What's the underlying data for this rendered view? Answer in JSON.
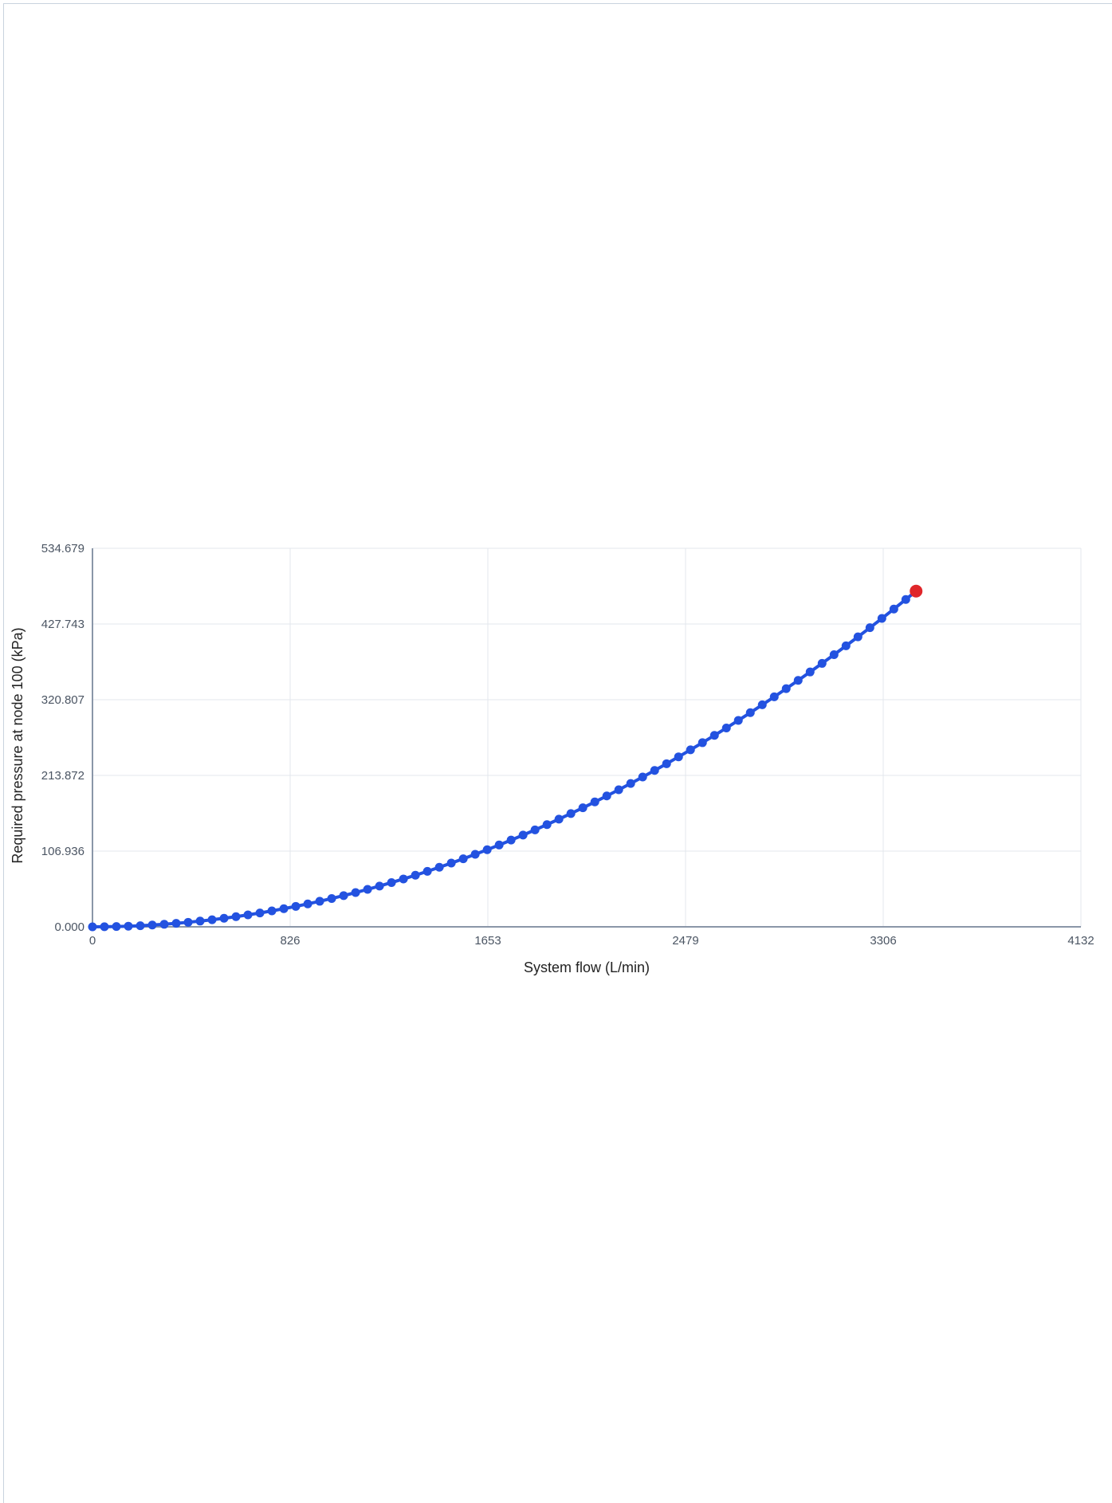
{
  "chart_data": {
    "type": "line",
    "title": "",
    "xlabel": "System flow (L/min)",
    "ylabel": "Required pressure at node 100 (kPa)",
    "xlim": [
      0,
      4132
    ],
    "ylim": [
      0,
      534.679
    ],
    "x_ticks": [
      "0",
      "826",
      "1653",
      "2479",
      "3306",
      "4132"
    ],
    "y_ticks": [
      "0.000",
      "106.936",
      "213.872",
      "320.807",
      "427.743",
      "534.679"
    ],
    "grid": true,
    "series": [
      {
        "color": "#2352e0",
        "marker": "circle",
        "points": [
          [
            0,
            0
          ],
          [
            50,
            0.1
          ],
          [
            100,
            0.4
          ],
          [
            150,
            0.9
          ],
          [
            200,
            1.6
          ],
          [
            250,
            2.5
          ],
          [
            300,
            3.6
          ],
          [
            350,
            4.9
          ],
          [
            400,
            6.4
          ],
          [
            450,
            8.1
          ],
          [
            500,
            10.0
          ],
          [
            550,
            12.1
          ],
          [
            600,
            14.4
          ],
          [
            650,
            16.9
          ],
          [
            700,
            19.6
          ],
          [
            750,
            22.5
          ],
          [
            800,
            25.6
          ],
          [
            850,
            28.9
          ],
          [
            900,
            32.4
          ],
          [
            950,
            36.1
          ],
          [
            1000,
            40.0
          ],
          [
            1050,
            44.1
          ],
          [
            1100,
            48.4
          ],
          [
            1150,
            52.9
          ],
          [
            1200,
            57.6
          ],
          [
            1250,
            62.5
          ],
          [
            1300,
            67.6
          ],
          [
            1350,
            72.9
          ],
          [
            1400,
            78.4
          ],
          [
            1450,
            84.1
          ],
          [
            1500,
            90.0
          ],
          [
            1550,
            96.1
          ],
          [
            1600,
            102.4
          ],
          [
            1650,
            108.9
          ],
          [
            1700,
            115.6
          ],
          [
            1750,
            122.5
          ],
          [
            1800,
            129.6
          ],
          [
            1850,
            136.9
          ],
          [
            1900,
            144.4
          ],
          [
            1950,
            152.1
          ],
          [
            2000,
            160.0
          ],
          [
            2050,
            168.1
          ],
          [
            2100,
            176.4
          ],
          [
            2150,
            184.9
          ],
          [
            2200,
            193.6
          ],
          [
            2250,
            202.5
          ],
          [
            2300,
            211.6
          ],
          [
            2350,
            220.9
          ],
          [
            2400,
            230.4
          ],
          [
            2450,
            240.1
          ],
          [
            2500,
            250.0
          ],
          [
            2550,
            260.1
          ],
          [
            2600,
            270.4
          ],
          [
            2650,
            280.9
          ],
          [
            2700,
            291.6
          ],
          [
            2750,
            302.5
          ],
          [
            2800,
            313.6
          ],
          [
            2850,
            324.9
          ],
          [
            2900,
            336.4
          ],
          [
            2950,
            348.1
          ],
          [
            3000,
            360.0
          ],
          [
            3050,
            372.1
          ],
          [
            3100,
            384.4
          ],
          [
            3150,
            396.9
          ],
          [
            3200,
            409.6
          ],
          [
            3250,
            422.5
          ],
          [
            3300,
            435.6
          ],
          [
            3350,
            448.9
          ],
          [
            3400,
            462.4
          ]
        ]
      }
    ],
    "highlight_point": {
      "x": 3443,
      "y": 474.2,
      "color": "#e0262a"
    },
    "axis_color": "#8a96a8",
    "grid_color": "#e3e7ec"
  }
}
